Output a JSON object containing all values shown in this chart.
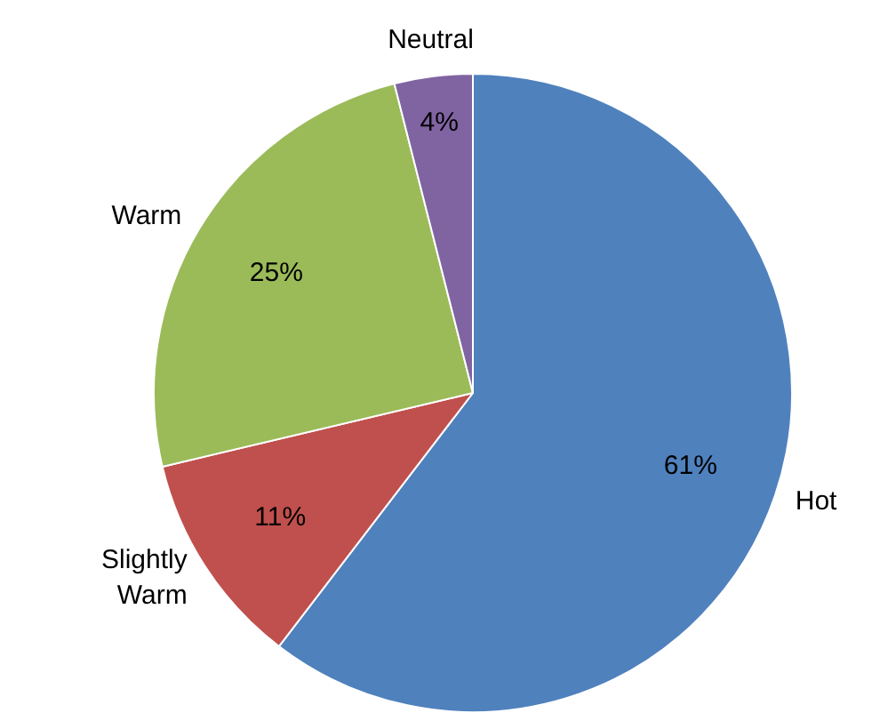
{
  "chart_data": {
    "type": "pie",
    "categories": [
      "Hot",
      "Slightly Warm",
      "Warm",
      "Neutral"
    ],
    "values": [
      61,
      11,
      25,
      4
    ],
    "value_labels": [
      "61%",
      "11%",
      "25%",
      "4%"
    ],
    "colors": [
      "#4f81bd",
      "#c0504d",
      "#9bbb59",
      "#8064a2"
    ],
    "legend": false
  }
}
